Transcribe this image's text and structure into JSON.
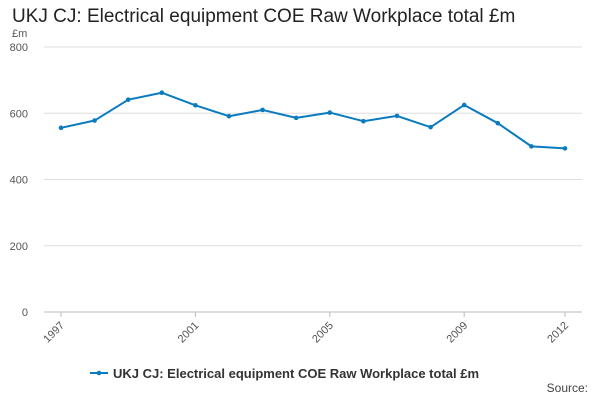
{
  "chart_data": {
    "type": "line",
    "title": "UKJ CJ: Electrical equipment COE Raw Workplace total £m",
    "ylabel": "£m",
    "xlabel": "",
    "ylim": [
      0,
      800
    ],
    "yticks": [
      0,
      200,
      400,
      600,
      800
    ],
    "xlim": [
      1997,
      2012
    ],
    "xticks": [
      1997,
      2001,
      2005,
      2009,
      2012
    ],
    "grid": true,
    "legend_position": "bottom",
    "source_label": "Source:",
    "series": [
      {
        "name": "UKJ CJ: Electrical equipment COE Raw Workplace total £m",
        "color": "#0a7bbf",
        "x": [
          1997,
          1998,
          1999,
          2000,
          2001,
          2002,
          2003,
          2004,
          2005,
          2006,
          2007,
          2008,
          2009,
          2010,
          2011,
          2012
        ],
        "values": [
          556,
          578,
          641,
          662,
          624,
          591,
          610,
          586,
          602,
          576,
          592,
          558,
          625,
          570,
          500,
          494
        ]
      }
    ]
  }
}
